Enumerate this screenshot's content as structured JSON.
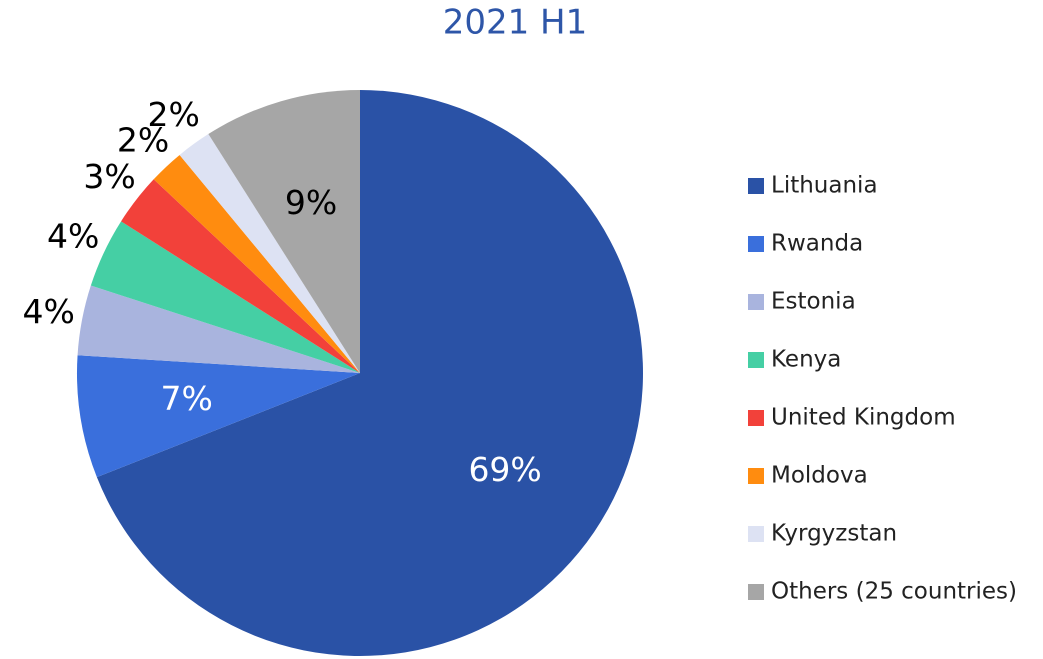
{
  "chart_data": {
    "type": "pie",
    "title": "2021 H1",
    "categories": [
      "Lithuania",
      "Rwanda",
      "Estonia",
      "Kenya",
      "United Kingdom",
      "Moldova",
      "Kyrgyzstan",
      "Others (25 countries)"
    ],
    "values": [
      69,
      7,
      4,
      4,
      3,
      2,
      2,
      9
    ],
    "value_labels": [
      "69%",
      "7%",
      "4%",
      "4%",
      "3%",
      "2%",
      "2%",
      "9%"
    ],
    "colors": [
      "#2a52a6",
      "#3a6fdc",
      "#a9b4de",
      "#45cfa4",
      "#f2413a",
      "#ff8c0f",
      "#dde2f3",
      "#a6a6a6"
    ],
    "legend": "right"
  }
}
